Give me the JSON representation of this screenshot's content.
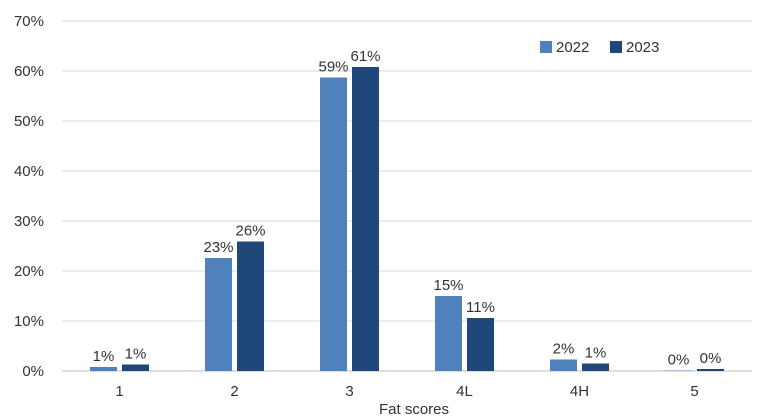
{
  "chart_data": {
    "type": "bar",
    "title": "",
    "xlabel": "Fat scores",
    "ylabel": "",
    "ylim": [
      0,
      70
    ],
    "yticks": [
      "0%",
      "10%",
      "20%",
      "30%",
      "40%",
      "50%",
      "60%",
      "70%"
    ],
    "ytick_values": [
      0,
      10,
      20,
      30,
      40,
      50,
      60,
      70
    ],
    "categories": [
      "1",
      "2",
      "3",
      "4L",
      "4H",
      "5"
    ],
    "grid": true,
    "legend_position": "top-right",
    "series": [
      {
        "name": "2022",
        "color": "#4f81bd",
        "values": [
          0.8,
          22.6,
          58.7,
          15.0,
          2.3,
          0.1
        ],
        "labels": [
          "1%",
          "23%",
          "59%",
          "15%",
          "2%",
          "0%"
        ]
      },
      {
        "name": "2023",
        "color": "#1f477a",
        "values": [
          1.3,
          25.9,
          60.8,
          10.6,
          1.5,
          0.4
        ],
        "labels": [
          "1%",
          "26%",
          "61%",
          "11%",
          "1%",
          "0%"
        ]
      }
    ]
  }
}
